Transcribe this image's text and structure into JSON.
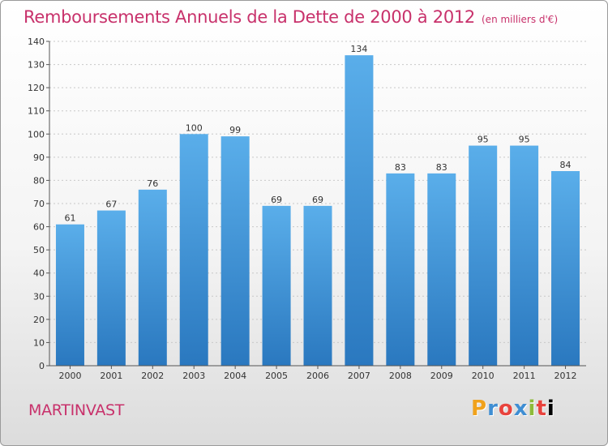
{
  "header": {
    "title": "Remboursements Annuels de la Dette de 2000 à 2012",
    "unit": "(en milliers d'€)"
  },
  "footer": {
    "commune": "MARTINVAST",
    "logo_text": "Proxiti",
    "logo_colors": [
      "#f0a21c",
      "#3f8ed3",
      "#e8433d",
      "#3f8ed3",
      "#8dbb3a",
      "#e8433d"
    ]
  },
  "chart_data": {
    "type": "bar",
    "title": "Remboursements Annuels de la Dette de 2000 à 2012",
    "subtitle": "(en milliers d'€)",
    "xlabel": "",
    "ylabel": "",
    "categories": [
      "2000",
      "2001",
      "2002",
      "2003",
      "2004",
      "2005",
      "2006",
      "2007",
      "2008",
      "2009",
      "2010",
      "2011",
      "2012"
    ],
    "values": [
      61,
      67,
      76,
      100,
      99,
      69,
      69,
      134,
      83,
      83,
      95,
      95,
      84
    ],
    "ylim": [
      0,
      140
    ],
    "yticks": [
      0,
      10,
      20,
      30,
      40,
      50,
      60,
      70,
      80,
      90,
      100,
      110,
      120,
      130,
      140
    ],
    "grid": true,
    "bar_color": "#4a9ee0",
    "bar_color_dark": "#2a78bf"
  }
}
